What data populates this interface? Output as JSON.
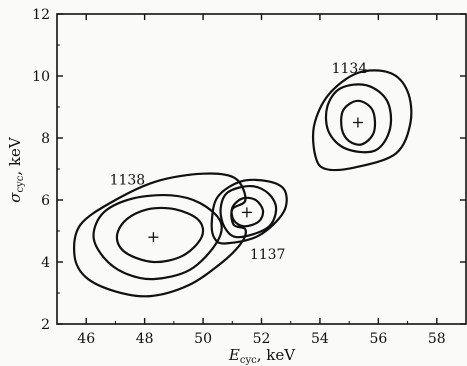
{
  "chart_data": {
    "type": "contour",
    "xlabel": {
      "var": "E",
      "sub": "cyc",
      "unit": ", keV"
    },
    "ylabel": {
      "var": "σ",
      "sub": "cyc",
      "unit": ", keV"
    },
    "xlim": [
      45,
      59
    ],
    "ylim": [
      2,
      12
    ],
    "xticks": [
      46,
      48,
      50,
      52,
      54,
      56,
      58
    ],
    "yticks": [
      2,
      4,
      6,
      8,
      10,
      12
    ],
    "grid": false,
    "series": [
      {
        "name": "1138",
        "center": [
          48.3,
          4.8
        ],
        "contours": [
          {
            "points": [
              [
                48.3,
                3.45
              ],
              [
                49.55,
                3.75
              ],
              [
                50.45,
                4.6
              ],
              [
                50.6,
                5.3
              ],
              [
                49.9,
                5.9
              ],
              [
                48.9,
                6.15
              ],
              [
                47.6,
                6.05
              ],
              [
                46.6,
                5.6
              ],
              [
                46.25,
                4.85
              ],
              [
                46.6,
                4.15
              ],
              [
                47.3,
                3.65
              ]
            ]
          },
          {
            "points": [
              [
                48.3,
                4.0
              ],
              [
                49.3,
                4.2
              ],
              [
                49.95,
                4.8
              ],
              [
                49.85,
                5.35
              ],
              [
                49.05,
                5.7
              ],
              [
                48.1,
                5.7
              ],
              [
                47.35,
                5.35
              ],
              [
                47.05,
                4.8
              ],
              [
                47.35,
                4.3
              ]
            ]
          },
          {
            "points": [
              [
                48.2,
                2.9
              ],
              [
                49.5,
                3.25
              ],
              [
                50.6,
                3.95
              ],
              [
                51.3,
                4.6
              ],
              [
                51.45,
                5.05
              ],
              [
                51.05,
                5.2
              ],
              [
                51.0,
                5.7
              ],
              [
                51.45,
                6.0
              ],
              [
                51.1,
                6.7
              ],
              [
                50.0,
                6.85
              ],
              [
                48.4,
                6.6
              ],
              [
                47.0,
                6.0
              ],
              [
                45.8,
                5.2
              ],
              [
                45.6,
                4.2
              ],
              [
                46.0,
                3.5
              ],
              [
                47.0,
                3.05
              ]
            ]
          }
        ]
      },
      {
        "name": "1137",
        "center": [
          51.5,
          5.6
        ],
        "contours": [
          {
            "points": [
              [
                51.4,
                5.15
              ],
              [
                51.9,
                5.3
              ],
              [
                52.05,
                5.65
              ],
              [
                51.8,
                6.0
              ],
              [
                51.35,
                6.05
              ],
              [
                51.0,
                5.75
              ],
              [
                51.05,
                5.35
              ]
            ]
          },
          {
            "points": [
              [
                51.2,
                4.8
              ],
              [
                52.2,
                5.1
              ],
              [
                52.5,
                5.7
              ],
              [
                52.25,
                6.2
              ],
              [
                51.65,
                6.45
              ],
              [
                50.85,
                6.25
              ],
              [
                50.6,
                5.7
              ],
              [
                50.75,
                5.1
              ]
            ]
          },
          {
            "points": [
              [
                50.8,
                4.6
              ],
              [
                51.9,
                4.85
              ],
              [
                52.75,
                5.6
              ],
              [
                52.8,
                6.3
              ],
              [
                52.25,
                6.6
              ],
              [
                51.3,
                6.6
              ],
              [
                50.5,
                6.1
              ],
              [
                50.3,
                5.3
              ],
              [
                50.4,
                4.75
              ]
            ]
          }
        ]
      },
      {
        "name": "1134",
        "center": [
          55.3,
          8.5
        ],
        "contours": [
          {
            "points": [
              [
                55.45,
                7.8
              ],
              [
                55.85,
                8.2
              ],
              [
                55.8,
                8.9
              ],
              [
                55.3,
                9.2
              ],
              [
                54.8,
                8.9
              ],
              [
                54.75,
                8.3
              ],
              [
                55.0,
                7.9
              ]
            ]
          },
          {
            "points": [
              [
                55.9,
                7.6
              ],
              [
                56.4,
                8.3
              ],
              [
                56.3,
                9.2
              ],
              [
                55.6,
                9.7
              ],
              [
                54.7,
                9.6
              ],
              [
                54.25,
                9.0
              ],
              [
                54.3,
                8.2
              ],
              [
                54.9,
                7.65
              ]
            ]
          },
          {
            "points": [
              [
                56.6,
                7.5
              ],
              [
                57.1,
                8.5
              ],
              [
                57.0,
                9.5
              ],
              [
                56.4,
                10.1
              ],
              [
                55.3,
                10.1
              ],
              [
                54.3,
                9.4
              ],
              [
                53.8,
                8.4
              ],
              [
                53.85,
                7.4
              ],
              [
                54.2,
                7.0
              ],
              [
                55.2,
                7.05
              ]
            ]
          }
        ]
      }
    ],
    "labels": [
      {
        "text": "1138",
        "x": 46.8,
        "y": 6.5
      },
      {
        "text": "1137",
        "x": 51.6,
        "y": 4.1
      },
      {
        "text": "1134",
        "x": 54.4,
        "y": 10.1
      }
    ]
  }
}
